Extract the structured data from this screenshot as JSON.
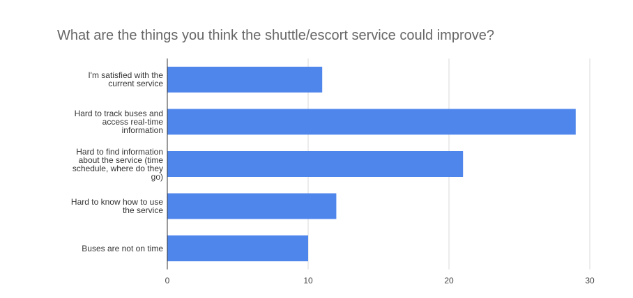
{
  "chart_data": {
    "type": "bar",
    "orientation": "horizontal",
    "title": "What are the things you think the shuttle/escort service could improve?",
    "categories": [
      [
        "I'm satisfied with the",
        "current service"
      ],
      [
        "Hard to track buses and",
        "access real-time",
        "information"
      ],
      [
        "Hard to find information",
        "about the service (time",
        "schedule, where do they",
        "go)"
      ],
      [
        "Hard to know how to use",
        "the service"
      ],
      [
        "Buses are not on time"
      ]
    ],
    "values": [
      11,
      29,
      21,
      12,
      10
    ],
    "xlim": [
      0,
      30
    ],
    "xticks": [
      "0",
      "10",
      "20",
      "30"
    ],
    "grid": true,
    "legend": "none",
    "bar_color": "#4f86ec",
    "grid_color": "#d9d9d9",
    "axis_color": "#333333"
  }
}
